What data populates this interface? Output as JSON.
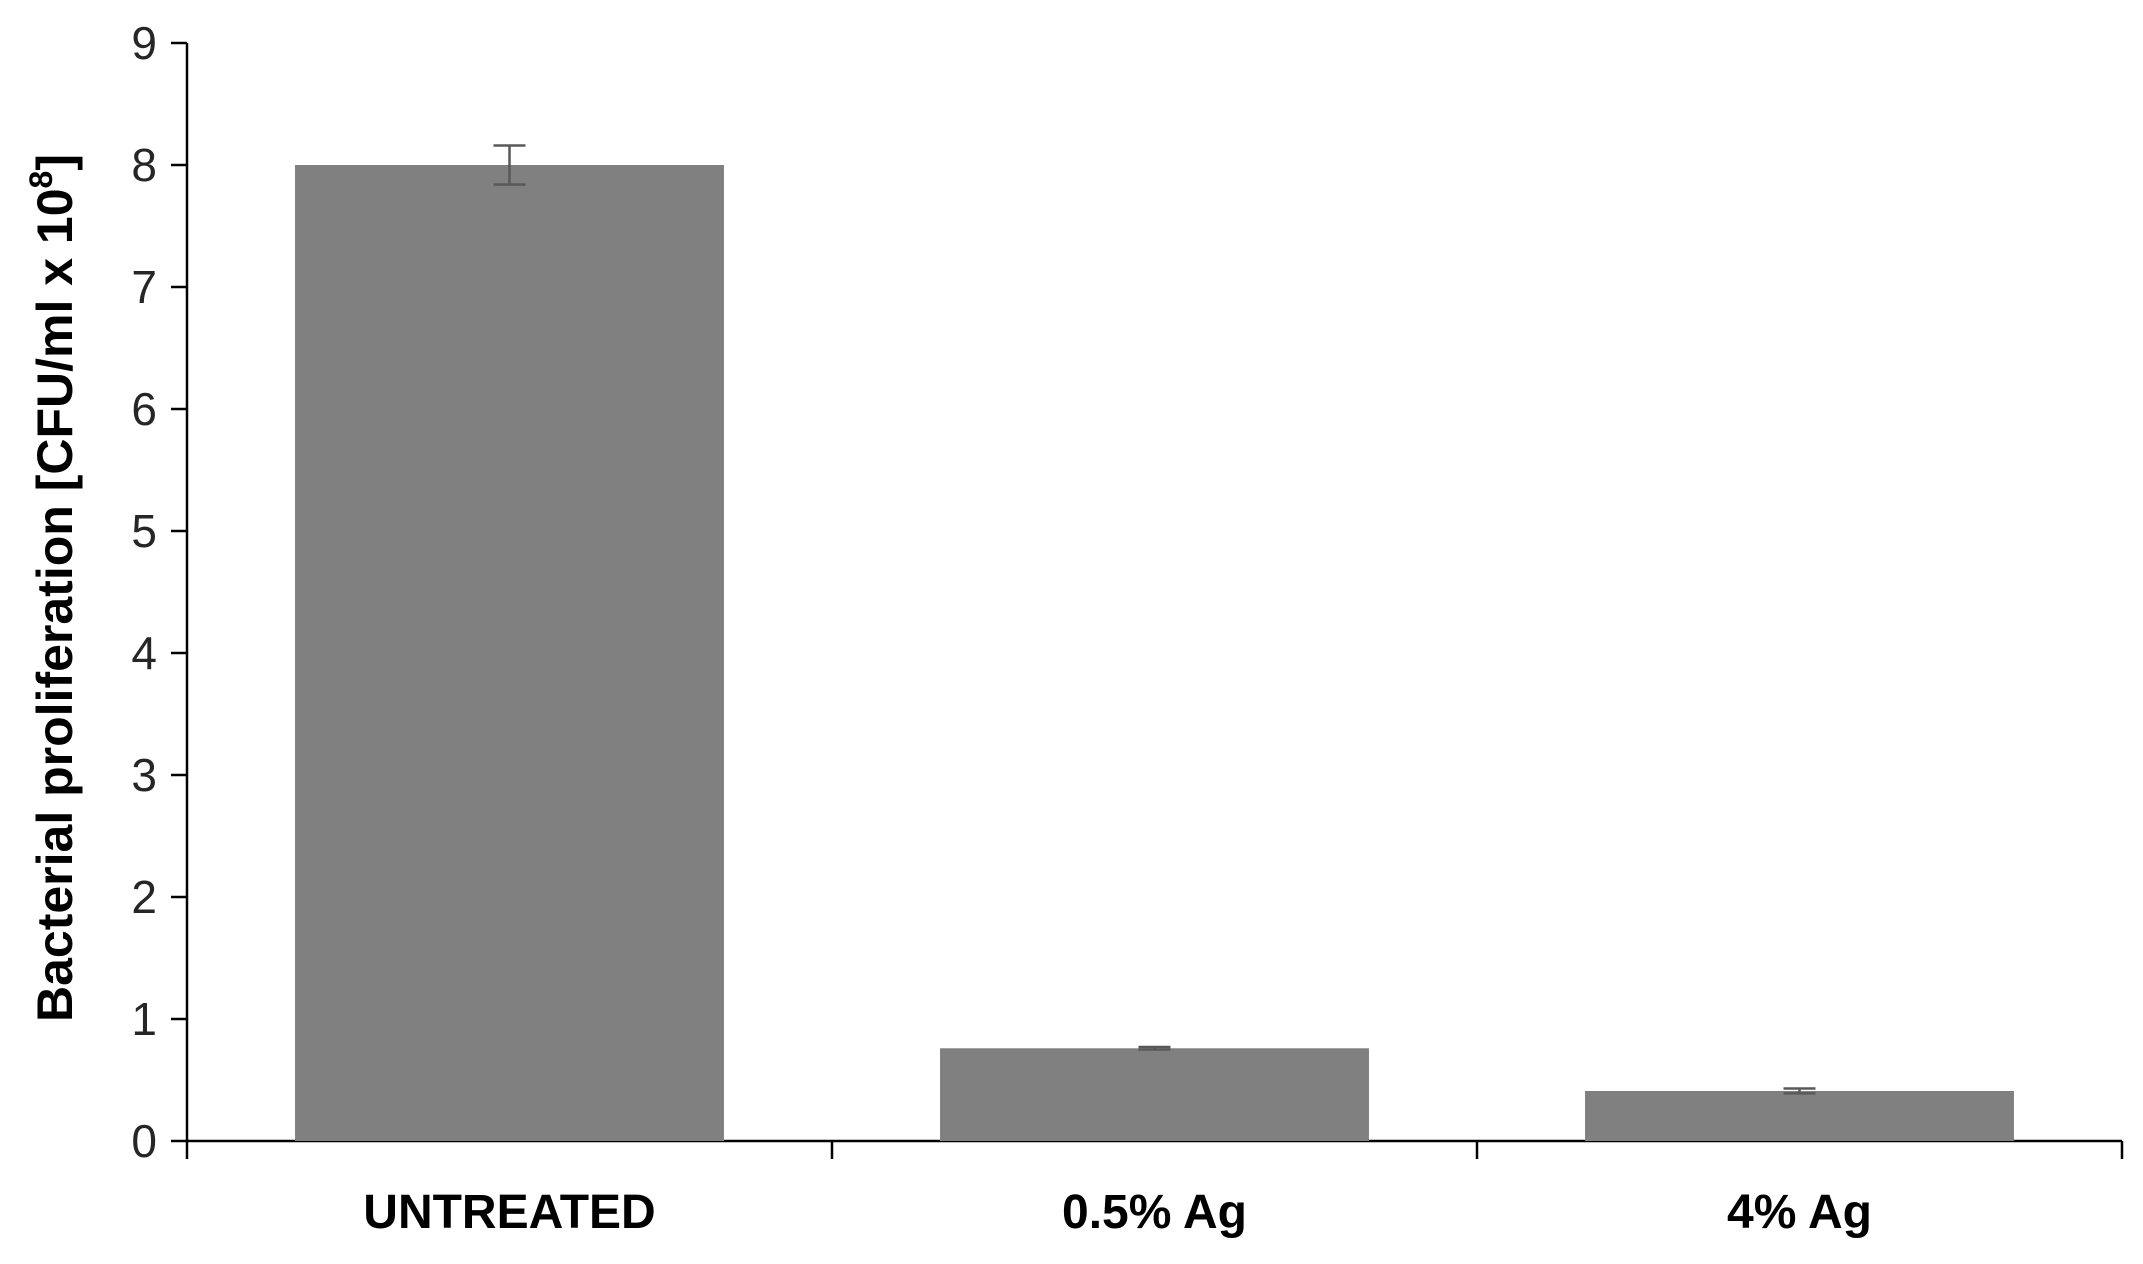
{
  "chart_data": {
    "type": "bar",
    "title": "",
    "xlabel": "",
    "ylabel": {
      "main": "Bacterial proliferation  [CFU/ml x 10",
      "superscript": "8",
      "close": "]"
    },
    "categories": [
      "UNTREATED",
      "0.5% Ag",
      "4% Ag"
    ],
    "values": [
      8.0,
      0.76,
      0.41
    ],
    "error": [
      0.16,
      0.01,
      0.02
    ],
    "ylim": [
      0,
      9
    ],
    "yticks": [
      "0",
      "1",
      "2",
      "3",
      "4",
      "5",
      "6",
      "7",
      "8",
      "9"
    ],
    "grid": false,
    "legend": "none",
    "colors": {
      "bar": "#808080",
      "axis": "#000000",
      "error_bar": "#595959"
    }
  }
}
